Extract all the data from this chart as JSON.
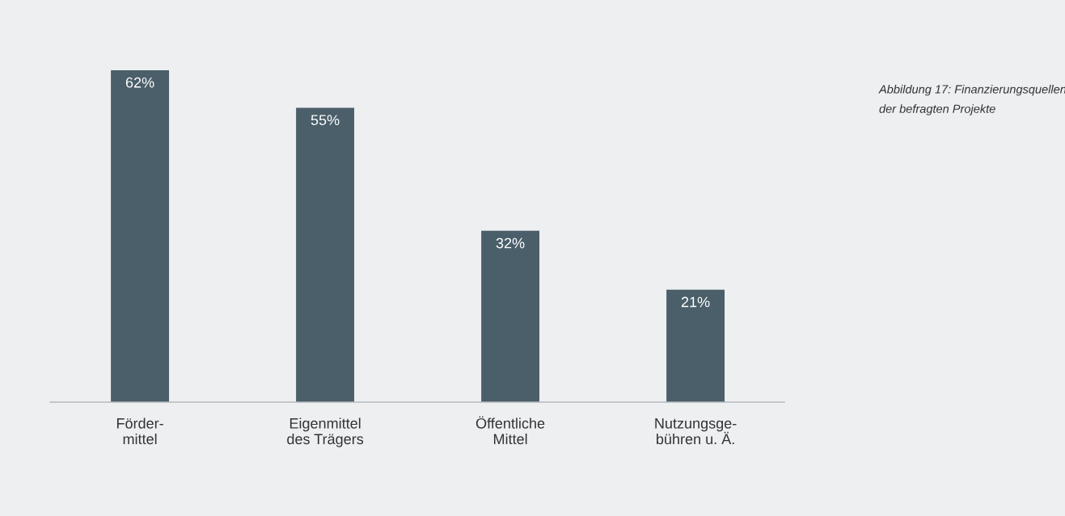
{
  "chart_data": {
    "type": "bar",
    "title": "Abbildung 17: Finanzierungsquellen\nder befragten Projekte",
    "categories": [
      "Förder-\nmittel",
      "Eigenmittel\ndes Trägers",
      "Öffentliche\nMittel",
      "Nutzungsge-\nbühren u. Ä."
    ],
    "values": [
      62,
      55,
      32,
      21
    ],
    "value_labels": [
      "62%",
      "55%",
      "32%",
      "21%"
    ],
    "color": "#4b5f6a",
    "grid": false,
    "legend": false,
    "tick_labels": "x"
  }
}
